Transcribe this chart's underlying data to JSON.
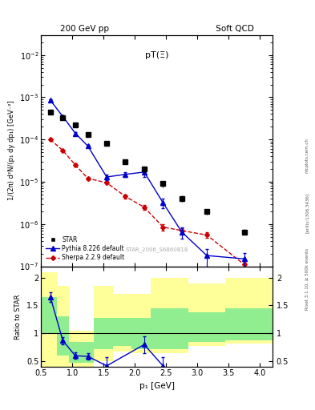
{
  "title_top_left": "200 GeV pp",
  "title_top_right": "Soft QCD",
  "plot_title": "pT(Ξ)",
  "watermark": "STAR_2006_S6860818",
  "rivet_label": "Rivet 3.1.10, ≥ 500k events",
  "arxiv_label": "[arXiv:1306.3436]",
  "mcplots_label": "mcplots.cern.ch",
  "ylabel_main": "1/(2π) d²N/(p₁ dy dp₁) [GeV⁻²]",
  "ylabel_ratio": "Ratio to STAR",
  "xlabel": "p₁ [GeV]",
  "xlim": [
    0.5,
    4.2
  ],
  "ylim_main": [
    1e-07,
    0.03
  ],
  "ylim_ratio": [
    0.4,
    2.2
  ],
  "star_x": [
    0.65,
    0.85,
    1.05,
    1.25,
    1.55,
    1.85,
    2.15,
    2.45,
    2.75,
    3.15,
    3.75
  ],
  "star_y": [
    0.00045,
    0.00033,
    0.00022,
    0.00013,
    8e-05,
    3e-05,
    2e-05,
    9e-06,
    4e-06,
    2e-06,
    6.5e-07
  ],
  "star_yerr_lo": [
    3e-05,
    2e-05,
    1e-05,
    7e-06,
    5e-06,
    3e-06,
    3e-06,
    1.5e-06,
    7e-07,
    3e-07,
    1e-07
  ],
  "star_yerr_hi": [
    3e-05,
    2e-05,
    1e-05,
    7e-06,
    5e-06,
    3e-06,
    3e-06,
    1.5e-06,
    7e-07,
    3e-07,
    1e-07
  ],
  "pythia_x": [
    0.65,
    0.85,
    1.05,
    1.25,
    1.55,
    1.85,
    2.15,
    2.45,
    2.75,
    3.15,
    3.75
  ],
  "pythia_y": [
    0.00085,
    0.00035,
    0.00014,
    7e-05,
    1.3e-05,
    1.5e-05,
    1.7e-05,
    3.2e-06,
    6.5e-07,
    1.8e-07,
    1.5e-07
  ],
  "pythia_yerr": [
    5e-05,
    2e-05,
    8e-06,
    5e-06,
    2e-06,
    2e-06,
    4e-06,
    8e-07,
    2e-07,
    8e-08,
    6e-08
  ],
  "sherpa_x": [
    0.65,
    0.85,
    1.05,
    1.25,
    1.55,
    1.85,
    2.15,
    2.45,
    2.75,
    3.15,
    3.75
  ],
  "sherpa_y": [
    0.0001,
    5.5e-05,
    2.5e-05,
    1.2e-05,
    9.5e-06,
    4.5e-06,
    2.5e-06,
    8.5e-07,
    7e-07,
    5.5e-07,
    1.1e-07
  ],
  "sherpa_yerr": [
    5e-06,
    3e-06,
    2e-06,
    1e-06,
    8e-07,
    5e-07,
    3e-07,
    1.5e-07,
    1e-07,
    8e-08,
    2e-08
  ],
  "ratio_pythia_x": [
    0.65,
    0.85,
    1.05,
    1.25,
    1.55,
    2.15,
    2.45
  ],
  "ratio_pythia_y": [
    1.65,
    0.87,
    0.6,
    0.59,
    0.42,
    0.8,
    0.42
  ],
  "ratio_pythia_yerr": [
    0.08,
    0.06,
    0.06,
    0.06,
    0.15,
    0.15,
    0.15
  ],
  "band_green_x": [
    0.5,
    0.75,
    0.95,
    1.15,
    1.35,
    1.65,
    1.95,
    2.25,
    2.55,
    2.85,
    3.45
  ],
  "band_green_w": [
    0.25,
    0.2,
    0.2,
    0.2,
    0.3,
    0.3,
    0.3,
    0.3,
    0.3,
    0.6,
    0.75
  ],
  "band_green_lo": [
    1.0,
    0.6,
    0.48,
    0.48,
    0.72,
    0.78,
    0.72,
    0.72,
    0.72,
    0.85,
    0.88
  ],
  "band_green_hi": [
    1.65,
    1.3,
    0.85,
    0.85,
    1.28,
    1.28,
    1.28,
    1.45,
    1.45,
    1.38,
    1.45
  ],
  "band_yellow_x": [
    0.5,
    0.75,
    0.95,
    1.15,
    1.35,
    1.65,
    1.95,
    2.25,
    2.55,
    2.85,
    3.45
  ],
  "band_yellow_w": [
    0.25,
    0.2,
    0.2,
    0.2,
    0.3,
    0.3,
    0.3,
    0.3,
    0.3,
    0.6,
    0.75
  ],
  "band_yellow_lo": [
    0.4,
    0.4,
    0.4,
    0.4,
    0.5,
    0.68,
    0.65,
    0.65,
    0.65,
    0.78,
    0.82
  ],
  "band_yellow_hi": [
    2.1,
    1.85,
    1.05,
    1.05,
    1.85,
    1.7,
    1.7,
    2.0,
    2.0,
    1.9,
    2.0
  ],
  "star_color": "#000000",
  "pythia_color": "#0000cc",
  "sherpa_color": "#cc0000",
  "green_color": "#90ee90",
  "yellow_color": "#ffff99",
  "bg_color": "#ffffff"
}
